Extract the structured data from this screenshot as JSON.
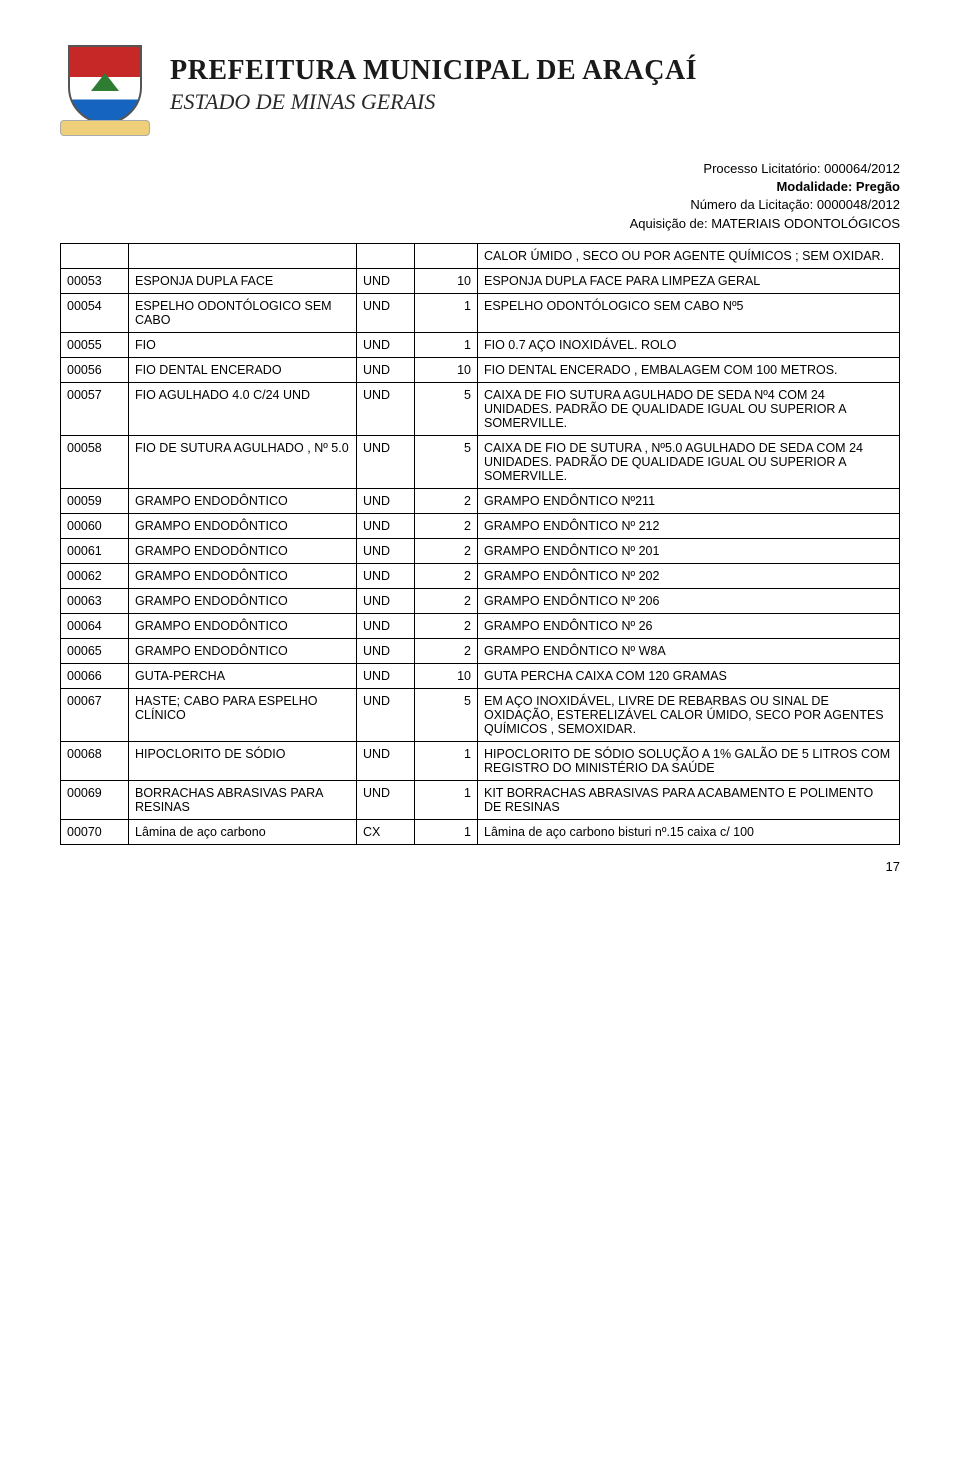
{
  "header": {
    "title": "PREFEITURA MUNICIPAL DE ARAÇAÍ",
    "subtitle": "ESTADO DE MINAS GERAIS"
  },
  "meta": {
    "line1": "Processo Licitatório: 000064/2012",
    "line2": "Modalidade: Pregão",
    "line3": "Número da Licitação: 0000048/2012",
    "line4": "Aquisição de: MATERIAIS ODONTOLÓGICOS"
  },
  "rows": [
    {
      "code": "",
      "name": "",
      "unit": "",
      "qty": "",
      "desc": "CALOR ÚMIDO , SECO OU POR AGENTE QUÍMICOS ; SEM OXIDAR."
    },
    {
      "code": "00053",
      "name": "ESPONJA DUPLA FACE",
      "unit": "UND",
      "qty": "10",
      "desc": "ESPONJA DUPLA FACE PARA LIMPEZA GERAL"
    },
    {
      "code": "00054",
      "name": "ESPELHO ODONTÓLOGICO SEM CABO",
      "unit": "UND",
      "qty": "1",
      "desc": "ESPELHO ODONTÓLOGICO SEM CABO Nº5"
    },
    {
      "code": "00055",
      "name": "FIO",
      "unit": "UND",
      "qty": "1",
      "desc": "FIO 0.7 AÇO INOXIDÁVEL. ROLO"
    },
    {
      "code": "00056",
      "name": "FIO DENTAL ENCERADO",
      "unit": "UND",
      "qty": "10",
      "desc": "FIO DENTAL ENCERADO , EMBALAGEM COM 100 METROS."
    },
    {
      "code": "00057",
      "name": "FIO AGULHADO 4.0 C/24 UND",
      "unit": "UND",
      "qty": "5",
      "desc": "CAIXA DE FIO SUTURA AGULHADO DE SEDA Nº4 COM 24 UNIDADES. PADRÃO DE QUALIDADE IGUAL OU SUPERIOR A SOMERVILLE."
    },
    {
      "code": "00058",
      "name": "FIO DE SUTURA AGULHADO , Nº 5.0",
      "unit": "UND",
      "qty": "5",
      "desc": "CAIXA DE FIO DE SUTURA  , Nº5.0 AGULHADO DE SEDA COM 24 UNIDADES. PADRÃO DE QUALIDADE IGUAL OU SUPERIOR A SOMERVILLE."
    },
    {
      "code": "00059",
      "name": "GRAMPO ENDODÔNTICO",
      "unit": "UND",
      "qty": "2",
      "desc": "GRAMPO ENDÔNTICO Nº211"
    },
    {
      "code": "00060",
      "name": "GRAMPO ENDODÔNTICO",
      "unit": "UND",
      "qty": "2",
      "desc": "GRAMPO ENDÔNTICO Nº 212"
    },
    {
      "code": "00061",
      "name": "GRAMPO ENDODÔNTICO",
      "unit": "UND",
      "qty": "2",
      "desc": "GRAMPO ENDÔNTICO Nº 201"
    },
    {
      "code": "00062",
      "name": "GRAMPO ENDODÔNTICO",
      "unit": "UND",
      "qty": "2",
      "desc": "GRAMPO ENDÔNTICO Nº 202"
    },
    {
      "code": "00063",
      "name": "GRAMPO ENDODÔNTICO",
      "unit": "UND",
      "qty": "2",
      "desc": "GRAMPO ENDÔNTICO Nº 206"
    },
    {
      "code": "00064",
      "name": "GRAMPO ENDODÔNTICO",
      "unit": "UND",
      "qty": "2",
      "desc": "GRAMPO ENDÔNTICO Nº 26"
    },
    {
      "code": "00065",
      "name": "GRAMPO ENDODÔNTICO",
      "unit": "UND",
      "qty": "2",
      "desc": "GRAMPO ENDÔNTICO Nº W8A"
    },
    {
      "code": "00066",
      "name": "GUTA-PERCHA",
      "unit": "UND",
      "qty": "10",
      "desc": "GUTA PERCHA CAIXA COM 120 GRAMAS"
    },
    {
      "code": "00067",
      "name": "HASTE; CABO PARA ESPELHO CLÍNICO",
      "unit": "UND",
      "qty": "5",
      "desc": "EM AÇO INOXIDÁVEL, LIVRE DE REBARBAS OU SINAL DE OXIDAÇÃO, ESTERELIZÁVEL CALOR ÚMIDO, SECO POR AGENTES QUÍMICOS , SEMOXIDAR."
    },
    {
      "code": "00068",
      "name": "HIPOCLORITO DE SÓDIO",
      "unit": "UND",
      "qty": "1",
      "desc": "HIPOCLORITO DE SÓDIO SOLUÇÃO A 1% GALÃO DE 5 LITROS COM REGISTRO DO MINISTÉRIO DA SAÚDE"
    },
    {
      "code": "00069",
      "name": "BORRACHAS ABRASIVAS PARA RESINAS",
      "unit": "UND",
      "qty": "1",
      "desc": "KIT BORRACHAS ABRASIVAS PARA ACABAMENTO E POLIMENTO DE RESINAS"
    },
    {
      "code": "00070",
      "name": "Lâmina de  aço carbono",
      "unit": "CX",
      "qty": "1",
      "desc": "Lâmina de  aço carbono bisturi  nº.15 caixa c/ 100"
    }
  ],
  "page_number": "17"
}
